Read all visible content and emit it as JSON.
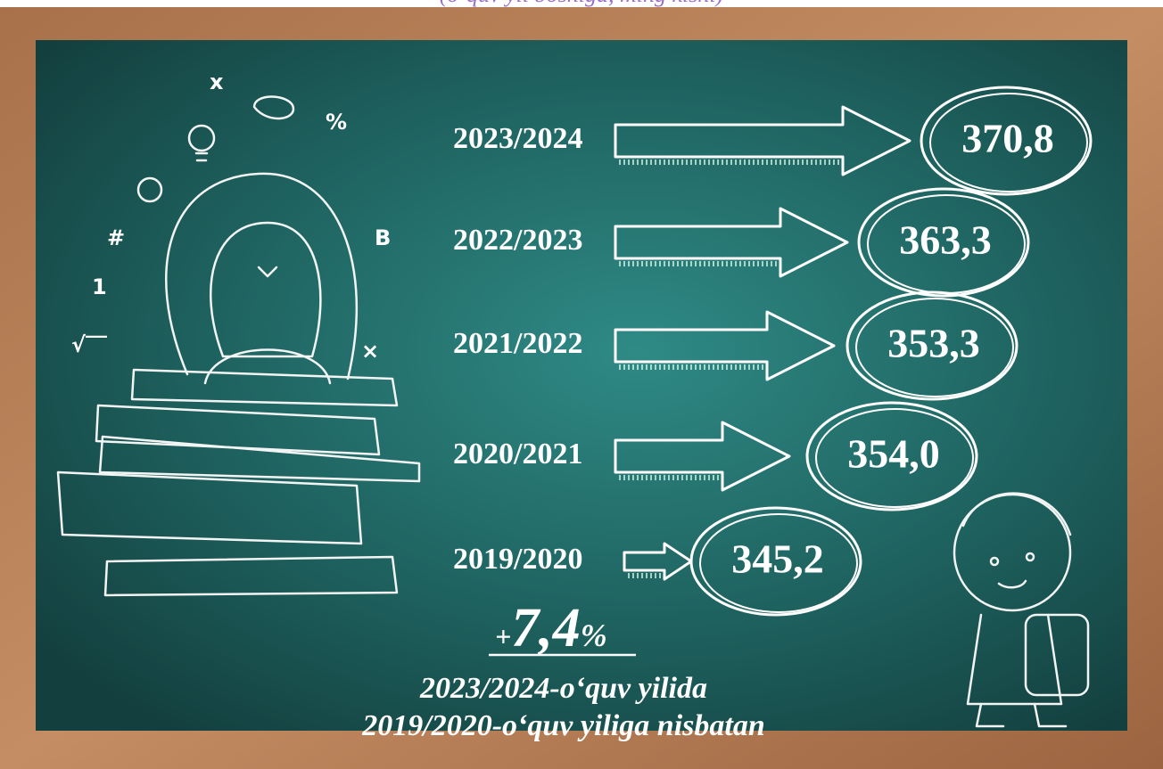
{
  "subtitle": "(o‘quv yil boshiga, ming kishi)",
  "items": [
    {
      "year": "2023/2024",
      "value": "370,8"
    },
    {
      "year": "2022/2023",
      "value": "363,3"
    },
    {
      "year": "2021/2022",
      "value": "353,3"
    },
    {
      "year": "2020/2021",
      "value": "354,0"
    },
    {
      "year": "2019/2020",
      "value": "345,2"
    }
  ],
  "growth": {
    "sign": "+",
    "number": "7,4",
    "unit": "%"
  },
  "footer": [
    "2023/2024-o‘quv yilida",
    "2019/2020-o‘quv yiliga nisbatan"
  ]
}
